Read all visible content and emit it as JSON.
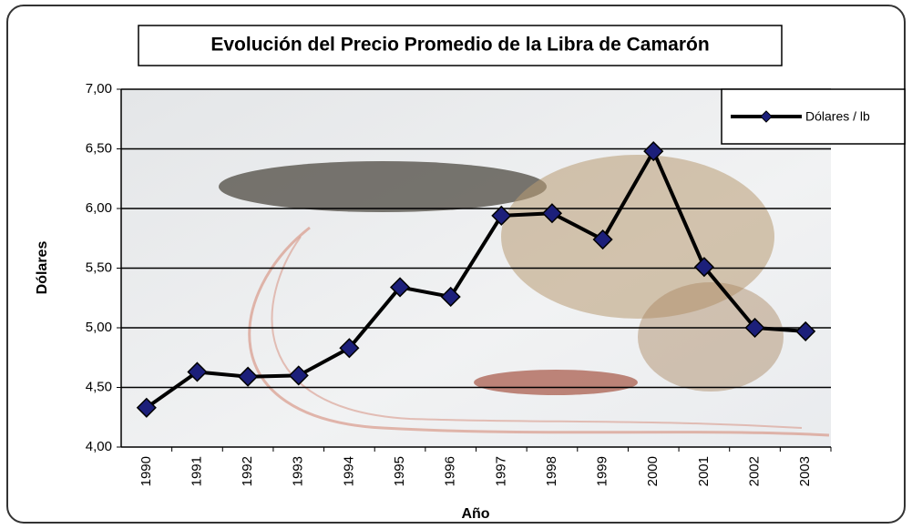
{
  "chart_data": {
    "type": "line",
    "title": "Evolución del Precio Promedio de la Libra de Camarón",
    "x_label": "Año",
    "y_label": "Dólares",
    "categories": [
      "1990",
      "1991",
      "1992",
      "1993",
      "1994",
      "1995",
      "1996",
      "1997",
      "1998",
      "1999",
      "2000",
      "2001",
      "2002",
      "2003"
    ],
    "series": [
      {
        "name": "Dólares / lb",
        "color": "#1c1f7a",
        "values": [
          4.33,
          4.63,
          4.59,
          4.6,
          4.83,
          5.34,
          5.26,
          5.94,
          5.96,
          5.74,
          6.48,
          5.51,
          5.0,
          4.97
        ]
      }
    ],
    "ylim": [
      4,
      7
    ],
    "yticks": [
      {
        "value": 4,
        "label": "4,00"
      },
      {
        "value": 4.5,
        "label": "4,50"
      },
      {
        "value": 5,
        "label": "5,00"
      },
      {
        "value": 5.5,
        "label": "5,50"
      },
      {
        "value": 6,
        "label": "6,00"
      },
      {
        "value": 6.5,
        "label": "6,50"
      },
      {
        "value": 7,
        "label": "7,00"
      }
    ],
    "grid": true,
    "legend": "top-right"
  }
}
